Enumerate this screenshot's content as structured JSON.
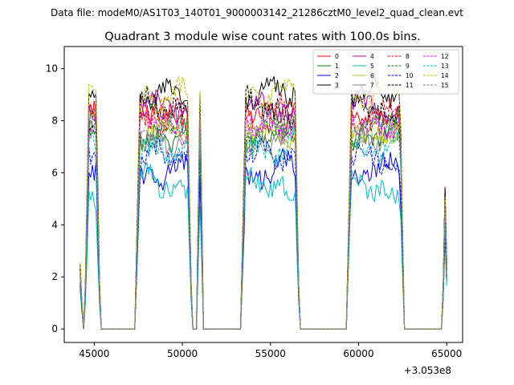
{
  "figure": {
    "suptitle": "Data file: modeM0/AS1T03_140T01_9000003142_21286cztM0_level2_quad_clean.evt"
  },
  "chart_data": {
    "type": "line",
    "title": "Quadrant 3 module wise count rates with 100.0s bins.",
    "xlabel": "",
    "ylabel": "",
    "x_offset_label": "+3.053e8",
    "xlim": [
      43300,
      65900
    ],
    "ylim": [
      -0.52,
      10.85
    ],
    "xticks": [
      45000,
      50000,
      55000,
      60000,
      65000
    ],
    "xtick_labels": [
      "45000",
      "50000",
      "55000",
      "60000",
      "65000"
    ],
    "yticks": [
      0,
      2,
      4,
      6,
      8,
      10
    ],
    "ytick_labels": [
      "0",
      "2",
      "4",
      "6",
      "8",
      "10"
    ],
    "grid": false,
    "legend_position": "top-right",
    "legend_columns": 4,
    "active_segments": [
      {
        "start": 44450,
        "end": 45350,
        "rise": 250,
        "fall": 250
      },
      {
        "start": 47300,
        "end": 50550,
        "rise": 300,
        "fall": 250
      },
      {
        "start": 50850,
        "end": 51150,
        "rise": 100,
        "fall": 100
      },
      {
        "start": 53300,
        "end": 56650,
        "rise": 300,
        "fall": 250
      },
      {
        "start": 59300,
        "end": 62600,
        "rise": 300,
        "fall": 250
      },
      {
        "start": 64750,
        "end": 65000,
        "rise": 250,
        "fall": 0
      }
    ],
    "series": [
      {
        "name": "0",
        "color": "#ff0000",
        "dash": "solid",
        "mean": 8.5
      },
      {
        "name": "1",
        "color": "#008000",
        "dash": "solid",
        "mean": 7.6
      },
      {
        "name": "2",
        "color": "#0000ff",
        "dash": "solid",
        "mean": 6.0
      },
      {
        "name": "3",
        "color": "#000000",
        "dash": "solid",
        "mean": 8.9
      },
      {
        "name": "4",
        "color": "#bf00bf",
        "dash": "solid",
        "mean": 8.3
      },
      {
        "name": "5",
        "color": "#00bfbf",
        "dash": "solid",
        "mean": 5.5
      },
      {
        "name": "6",
        "color": "#bfbf00",
        "dash": "solid",
        "mean": 7.8
      },
      {
        "name": "7",
        "color": "#808080",
        "dash": "solid",
        "mean": 7.5
      },
      {
        "name": "8",
        "color": "#ff0000",
        "dash": "dashed",
        "mean": 8.2
      },
      {
        "name": "9",
        "color": "#008000",
        "dash": "dashed",
        "mean": 7.4
      },
      {
        "name": "10",
        "color": "#0000ff",
        "dash": "dashed",
        "mean": 6.4
      },
      {
        "name": "11",
        "color": "#000000",
        "dash": "dashed",
        "mean": 8.4
      },
      {
        "name": "12",
        "color": "#ff00ff",
        "dash": "dashed",
        "mean": 8.0
      },
      {
        "name": "13",
        "color": "#00bfbf",
        "dash": "dashed",
        "mean": 7.1
      },
      {
        "name": "14",
        "color": "#bfbf00",
        "dash": "dashed",
        "mean": 9.1
      },
      {
        "name": "15",
        "color": "#808080",
        "dash": "dashed",
        "mean": 7.7
      }
    ]
  }
}
